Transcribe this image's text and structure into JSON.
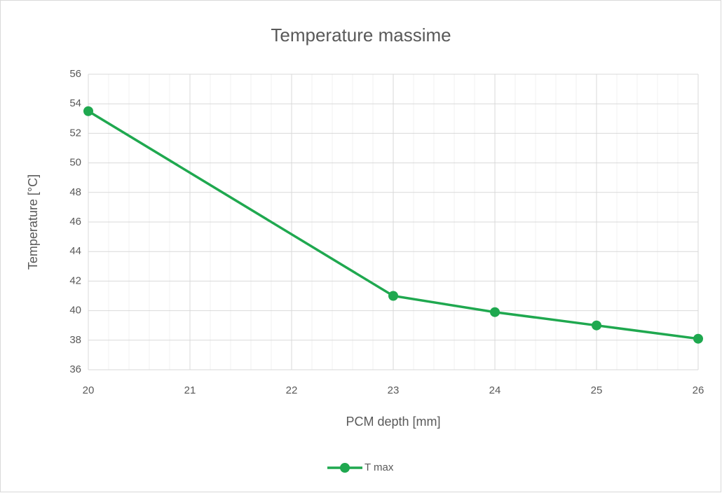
{
  "chart_data": {
    "type": "line",
    "title": "Temperature massime",
    "x_label": "PCM depth [mm]",
    "y_label": "Temperature [°C]",
    "x": [
      20,
      23,
      24,
      25,
      26
    ],
    "series": [
      {
        "name": "T max",
        "color": "#1fa84f",
        "values": [
          53.5,
          41.0,
          39.9,
          39.0,
          38.1
        ]
      }
    ],
    "xlim": [
      20,
      26
    ],
    "xticks": [
      20,
      21,
      22,
      23,
      24,
      25,
      26
    ],
    "ylim": [
      36,
      56
    ],
    "yticks": [
      36,
      38,
      40,
      42,
      44,
      46,
      48,
      50,
      52,
      54,
      56
    ],
    "grid": true,
    "minor_grid": true,
    "legend": "bottom"
  }
}
